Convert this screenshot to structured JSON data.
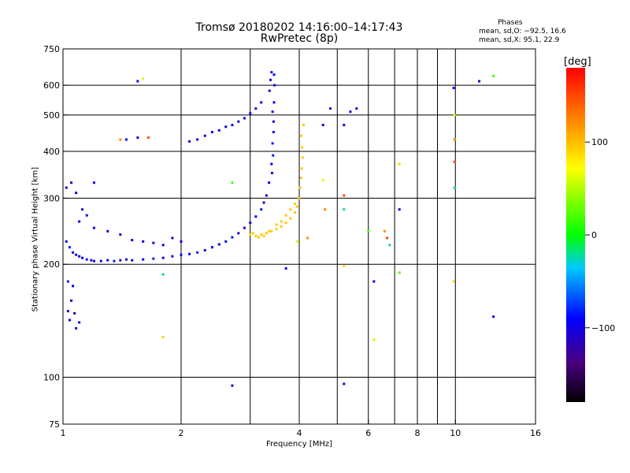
{
  "header": {
    "title_line1": "Tromsø 20180202  14:16:00–14:17:43",
    "title_line2": "RwPretec (8p)"
  },
  "phases_box": {
    "title": "Phases",
    "o_line": "mean, sd,O: −92.5, 16.6",
    "x_line": "mean, sd,X:  95.1, 22.9"
  },
  "colorbar": {
    "unit_label": "[deg]",
    "ticks": [
      "100",
      "0",
      "−100"
    ],
    "tick_values": [
      100,
      0,
      -100
    ],
    "range": [
      -180,
      180
    ]
  },
  "chart_data": {
    "type": "scatter",
    "title": "Tromsø 20180202  14:16:00–14:17:43",
    "subtitle": "RwPretec (8p)",
    "xlabel": "Frequency [MHz]",
    "ylabel": "Stationary phase Virtual Height [km]",
    "xscale": "log",
    "yscale": "log",
    "xlim": [
      1,
      16
    ],
    "ylim": [
      75,
      750
    ],
    "x_ticks": [
      1,
      2,
      4,
      6,
      8,
      10,
      16
    ],
    "x_tick_labels": [
      "1",
      "2",
      "4",
      "6",
      "8",
      "10",
      "16"
    ],
    "x_grid": [
      1,
      2,
      3,
      4,
      5,
      6,
      7,
      8,
      9,
      10
    ],
    "y_ticks": [
      75,
      100,
      200,
      300,
      400,
      500,
      600,
      750
    ],
    "y_tick_labels": [
      "75",
      "100",
      "200",
      "300",
      "400",
      "500",
      "600",
      "750"
    ],
    "y_grid": [
      100,
      200,
      300,
      400,
      500,
      600
    ],
    "grid": true,
    "color_variable": "phase [deg]",
    "series": [
      {
        "name": "O-mode low band",
        "points": [
          [
            1.03,
            150
          ],
          [
            1.04,
            142
          ],
          [
            1.05,
            160
          ],
          [
            1.06,
            175
          ],
          [
            1.03,
            180
          ],
          [
            1.07,
            148
          ],
          [
            1.08,
            135
          ],
          [
            1.1,
            140
          ],
          [
            1.02,
            230
          ],
          [
            1.04,
            222
          ],
          [
            1.06,
            215
          ],
          [
            1.08,
            212
          ],
          [
            1.1,
            210
          ],
          [
            1.12,
            208
          ],
          [
            1.15,
            206
          ],
          [
            1.18,
            205
          ],
          [
            1.2,
            204
          ],
          [
            1.25,
            204
          ],
          [
            1.3,
            205
          ],
          [
            1.35,
            204
          ],
          [
            1.4,
            205
          ],
          [
            1.45,
            206
          ],
          [
            1.5,
            205
          ],
          [
            1.6,
            206
          ],
          [
            1.7,
            207
          ],
          [
            1.8,
            208
          ],
          [
            1.9,
            210
          ],
          [
            2.0,
            212
          ],
          [
            2.1,
            213
          ],
          [
            2.2,
            215
          ],
          [
            2.3,
            218
          ],
          [
            2.4,
            222
          ],
          [
            2.5,
            226
          ],
          [
            2.6,
            230
          ],
          [
            2.7,
            236
          ],
          [
            2.8,
            242
          ],
          [
            2.9,
            250
          ],
          [
            3.0,
            258
          ],
          [
            3.1,
            268
          ],
          [
            3.2,
            280
          ],
          [
            3.25,
            292
          ],
          [
            3.3,
            305
          ],
          [
            3.35,
            330
          ],
          [
            3.4,
            370
          ],
          [
            3.42,
            420
          ],
          [
            3.44,
            480
          ],
          [
            3.45,
            540
          ],
          [
            3.46,
            600
          ],
          [
            3.45,
            640
          ],
          [
            3.4,
            650
          ],
          [
            3.38,
            620
          ],
          [
            3.36,
            580
          ],
          [
            3.42,
            510
          ],
          [
            3.44,
            450
          ],
          [
            3.43,
            390
          ],
          [
            3.41,
            350
          ]
        ],
        "phase": -95
      },
      {
        "name": "O-mode scattered high returns",
        "points": [
          [
            1.02,
            320
          ],
          [
            1.05,
            330
          ],
          [
            1.08,
            310
          ],
          [
            1.12,
            280
          ],
          [
            1.15,
            270
          ],
          [
            1.1,
            260
          ],
          [
            1.2,
            250
          ],
          [
            1.3,
            245
          ],
          [
            1.4,
            240
          ],
          [
            1.5,
            232
          ],
          [
            1.6,
            230
          ],
          [
            1.7,
            228
          ],
          [
            1.8,
            225
          ],
          [
            1.9,
            235
          ],
          [
            2.0,
            230
          ],
          [
            2.2,
            430
          ],
          [
            2.3,
            440
          ],
          [
            2.4,
            450
          ],
          [
            2.5,
            455
          ],
          [
            2.6,
            465
          ],
          [
            2.7,
            470
          ],
          [
            2.8,
            480
          ],
          [
            2.9,
            490
          ],
          [
            3.0,
            505
          ],
          [
            3.1,
            520
          ],
          [
            3.2,
            540
          ],
          [
            2.1,
            425
          ],
          [
            1.55,
            435
          ],
          [
            1.45,
            430
          ],
          [
            1.2,
            330
          ],
          [
            5.4,
            510
          ],
          [
            5.6,
            520
          ],
          [
            4.8,
            520
          ],
          [
            5.2,
            470
          ],
          [
            4.6,
            470
          ]
        ],
        "phase": -100
      },
      {
        "name": "X-mode band",
        "points": [
          [
            3.0,
            240
          ],
          [
            3.1,
            238
          ],
          [
            3.2,
            240
          ],
          [
            3.3,
            242
          ],
          [
            3.4,
            245
          ],
          [
            3.5,
            248
          ],
          [
            3.6,
            252
          ],
          [
            3.7,
            258
          ],
          [
            3.8,
            265
          ],
          [
            3.9,
            275
          ],
          [
            3.95,
            285
          ],
          [
            4.0,
            300
          ],
          [
            4.02,
            320
          ],
          [
            4.04,
            340
          ],
          [
            4.06,
            360
          ],
          [
            4.08,
            385
          ],
          [
            4.07,
            410
          ],
          [
            4.05,
            440
          ],
          [
            4.1,
            470
          ],
          [
            3.6,
            260
          ],
          [
            3.7,
            270
          ],
          [
            3.8,
            280
          ],
          [
            3.9,
            290
          ],
          [
            3.5,
            255
          ],
          [
            3.35,
            245
          ],
          [
            3.25,
            238
          ],
          [
            3.15,
            236
          ],
          [
            3.05,
            242
          ]
        ],
        "phase": 95
      },
      {
        "name": "isolated points",
        "points": [
          [
            1.55,
            615
          ],
          [
            1.6,
            625
          ],
          [
            1.4,
            430
          ],
          [
            1.65,
            435
          ],
          [
            1.8,
            188
          ],
          [
            1.8,
            128
          ],
          [
            2.7,
            95
          ],
          [
            2.7,
            330
          ],
          [
            3.7,
            195
          ],
          [
            4.6,
            335
          ],
          [
            4.65,
            280
          ],
          [
            5.2,
            305
          ],
          [
            5.2,
            280
          ],
          [
            5.2,
            198
          ],
          [
            5.2,
            96
          ],
          [
            6.0,
            245
          ],
          [
            6.2,
            180
          ],
          [
            6.2,
            126
          ],
          [
            6.6,
            245
          ],
          [
            6.7,
            235
          ],
          [
            6.8,
            225
          ],
          [
            7.2,
            370
          ],
          [
            7.2,
            280
          ],
          [
            7.2,
            190
          ],
          [
            9.9,
            590
          ],
          [
            9.95,
            500
          ],
          [
            9.95,
            430
          ],
          [
            9.95,
            375
          ],
          [
            9.95,
            320
          ],
          [
            9.9,
            180
          ],
          [
            11.5,
            615
          ],
          [
            12.5,
            635
          ],
          [
            12.5,
            145
          ],
          [
            3.95,
            230
          ],
          [
            4.2,
            235
          ]
        ],
        "phase": 40
      }
    ]
  }
}
